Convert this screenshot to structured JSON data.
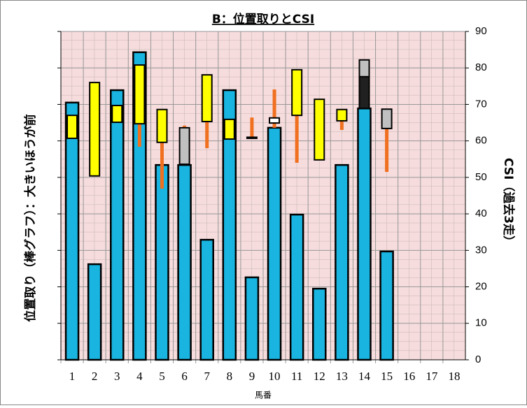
{
  "chart_data": {
    "type": "bar",
    "title": "B：位置取りとCSI",
    "x_label": "馬番",
    "y_label": "位置取り（棒グラフ）：大きいほうが前",
    "y2_label": "CSI（過去3走）",
    "categories": [
      "1",
      "2",
      "3",
      "4",
      "5",
      "6",
      "7",
      "8",
      "9",
      "10",
      "11",
      "12",
      "13",
      "14",
      "15",
      "16",
      "17",
      "18"
    ],
    "ylim": [
      0,
      90
    ],
    "yticks": [
      0,
      10,
      20,
      30,
      40,
      50,
      60,
      70,
      80,
      90
    ],
    "y2lim": [
      0,
      90
    ],
    "y2ticks": [
      0,
      10,
      20,
      30,
      40,
      50,
      60,
      70,
      80,
      90
    ],
    "grid": true,
    "series": [
      {
        "color": "#1ab4e0",
        "values": [
          70.5,
          26.2,
          73.9,
          84.3,
          53.4,
          53.4,
          32.9,
          73.9,
          22.6,
          63.6,
          39.8,
          19.5,
          53.4,
          68.9,
          29.7,
          0,
          0,
          0
        ]
      }
    ],
    "ranges": [
      {
        "color": "#f07020",
        "axis": "y2",
        "low": [
          null,
          null,
          null,
          58.4,
          46.9,
          62.6,
          58.0,
          null,
          60.7,
          63.6,
          54.0,
          null,
          63.0,
          null,
          51.5,
          null,
          null,
          null
        ],
        "high": [
          null,
          null,
          null,
          64.7,
          59.6,
          64.2,
          65.3,
          null,
          66.4,
          74.1,
          67.0,
          null,
          65.5,
          null,
          63.4,
          null,
          null,
          null
        ]
      },
      {
        "color": "#ffff00",
        "axis": "y2",
        "low": [
          60.7,
          50.4,
          65.1,
          64.7,
          59.6,
          null,
          65.3,
          60.5,
          null,
          null,
          67.0,
          54.8,
          65.5,
          null,
          null,
          null,
          null,
          null
        ],
        "high": [
          67.0,
          76.0,
          69.7,
          80.8,
          68.6,
          null,
          78.1,
          65.9,
          null,
          null,
          79.5,
          71.4,
          68.6,
          null,
          null,
          null,
          null,
          null
        ]
      },
      {
        "color": "#c0c0c0",
        "axis": "y2",
        "low": [
          null,
          null,
          null,
          null,
          null,
          53.6,
          null,
          null,
          null,
          null,
          null,
          null,
          null,
          68.9,
          63.4,
          null,
          null,
          null
        ],
        "high": [
          null,
          null,
          null,
          null,
          null,
          63.6,
          null,
          null,
          null,
          null,
          null,
          null,
          null,
          82.2,
          68.7,
          null,
          null,
          null
        ]
      },
      {
        "color": "#ffffff",
        "axis": "y2",
        "low": [
          null,
          null,
          null,
          null,
          null,
          null,
          null,
          null,
          60.7,
          64.9,
          null,
          null,
          null,
          null,
          null,
          null,
          null,
          null
        ],
        "high": [
          null,
          null,
          null,
          null,
          null,
          null,
          null,
          null,
          61.0,
          66.3,
          null,
          null,
          null,
          null,
          null,
          null,
          null,
          null
        ]
      },
      {
        "color": "#202020",
        "axis": "y2",
        "low": [
          null,
          null,
          null,
          null,
          null,
          null,
          null,
          null,
          null,
          null,
          null,
          null,
          null,
          68.9,
          null,
          null,
          null,
          null
        ],
        "high": [
          null,
          null,
          null,
          null,
          null,
          null,
          null,
          null,
          null,
          null,
          null,
          null,
          null,
          77.6,
          null,
          null,
          null,
          null
        ]
      }
    ]
  }
}
